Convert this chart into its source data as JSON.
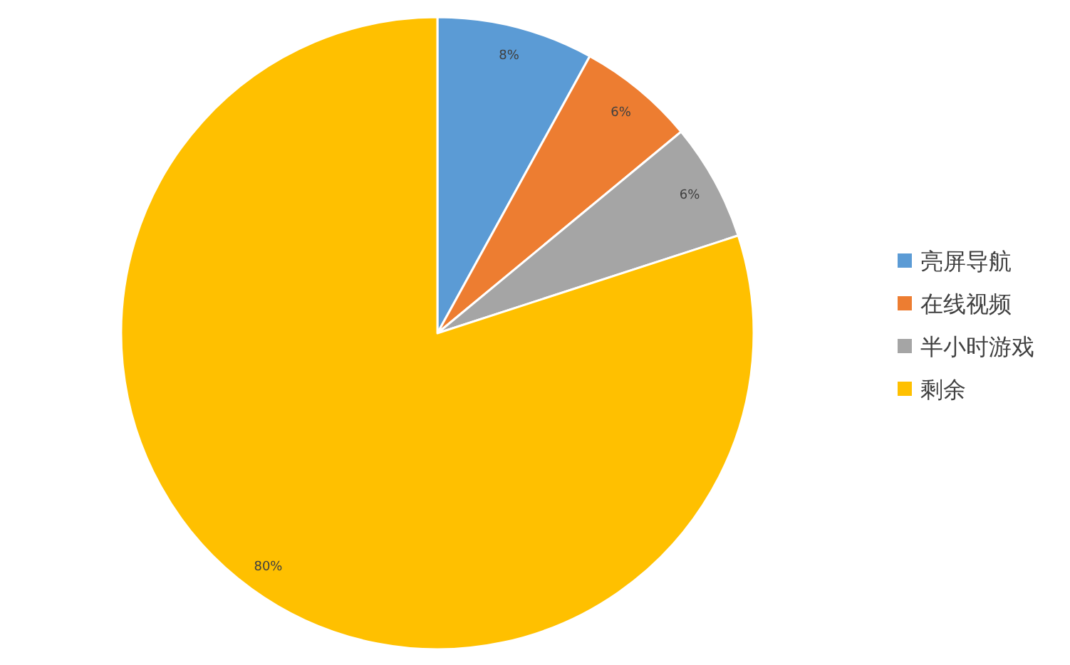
{
  "chart_data": {
    "type": "pie",
    "categories": [
      "亮屏导航",
      "在线视频",
      "半小时游戏",
      "剩余"
    ],
    "values": [
      8,
      6,
      6,
      80
    ],
    "colors": [
      "#5b9bd5",
      "#ed7d31",
      "#a5a5a5",
      "#ffc000"
    ],
    "value_labels": [
      "8%",
      "6%",
      "6%",
      "80%"
    ],
    "legend": "right"
  }
}
